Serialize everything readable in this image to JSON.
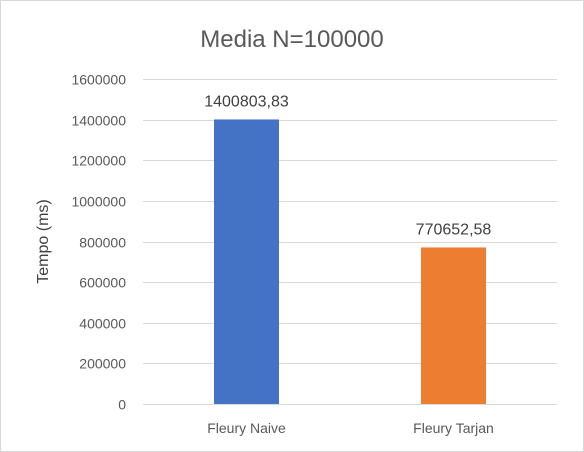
{
  "chart_data": {
    "type": "bar",
    "title": "Media N=100000",
    "xlabel": "",
    "ylabel": "Tempo (ms)",
    "categories": [
      "Fleury Naive",
      "Fleury Tarjan"
    ],
    "values": [
      1400803.83,
      770652.58
    ],
    "data_labels": [
      "1400803,83",
      "770652,58"
    ],
    "colors": [
      "#4472c4",
      "#ed7d31"
    ],
    "ylim": [
      0,
      1600000
    ],
    "yticks": [
      0,
      200000,
      400000,
      600000,
      800000,
      1000000,
      1200000,
      1400000,
      1600000
    ],
    "ytick_labels": [
      "0",
      "200000",
      "400000",
      "600000",
      "800000",
      "1000000",
      "1200000",
      "1400000",
      "1600000"
    ],
    "grid": true,
    "legend": "none"
  }
}
